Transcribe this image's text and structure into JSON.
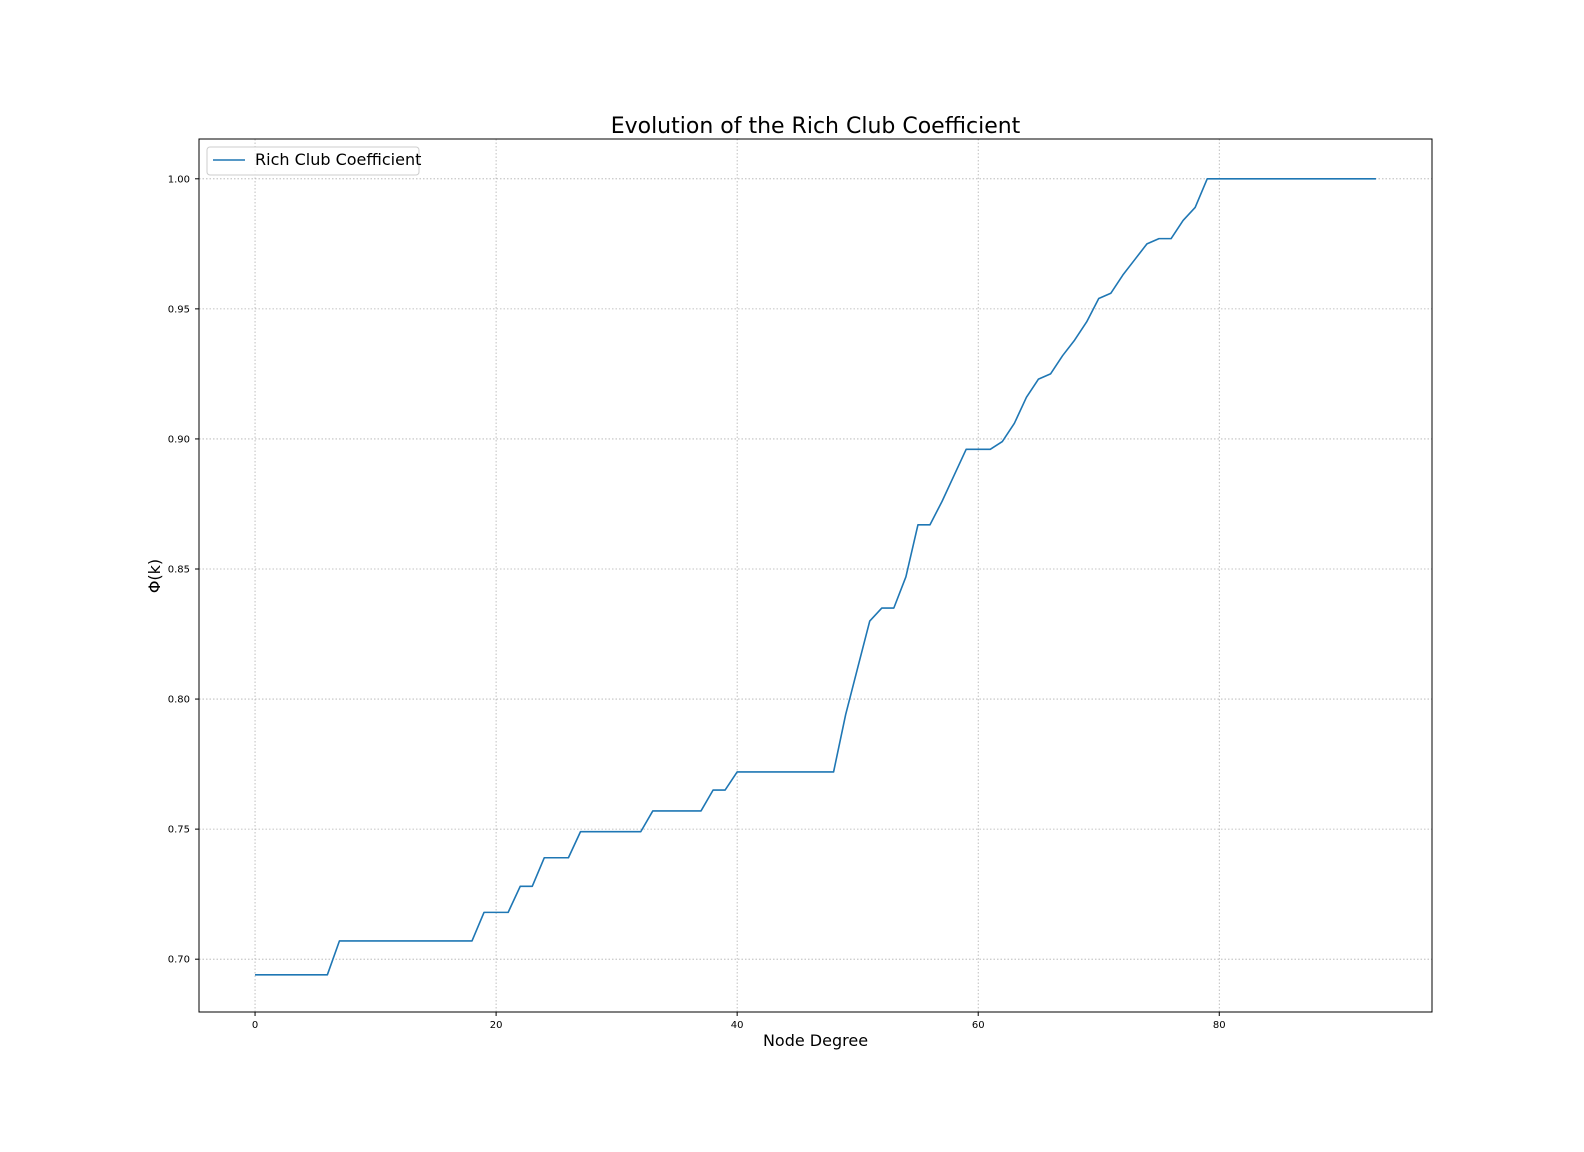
{
  "chart_data": {
    "type": "line",
    "title": "Evolution of the Rich Club Coefficient",
    "xlabel": "Node Degree",
    "ylabel": "Φ(k)",
    "xlim": [
      -4.65,
      97.65
    ],
    "ylim": [
      0.6797,
      1.0153
    ],
    "xticks": [
      0,
      20,
      40,
      60,
      80
    ],
    "yticks": [
      0.7,
      0.75,
      0.8,
      0.85,
      0.9,
      0.95,
      1.0
    ],
    "xtick_labels": [
      "0",
      "20",
      "40",
      "60",
      "80"
    ],
    "ytick_labels": [
      "0.70",
      "0.75",
      "0.80",
      "0.85",
      "0.90",
      "0.95",
      "1.00"
    ],
    "grid": true,
    "legend_position": "top-left",
    "series": [
      {
        "name": "Rich Club Coefficient",
        "color": "#1f77b4",
        "x": [
          0,
          1,
          2,
          3,
          4,
          5,
          6,
          7,
          8,
          9,
          10,
          11,
          12,
          13,
          14,
          15,
          16,
          17,
          18,
          19,
          20,
          21,
          22,
          23,
          24,
          25,
          26,
          27,
          28,
          29,
          30,
          31,
          32,
          33,
          34,
          35,
          36,
          37,
          38,
          39,
          40,
          41,
          42,
          43,
          44,
          45,
          46,
          47,
          48,
          49,
          50,
          51,
          52,
          53,
          54,
          55,
          56,
          57,
          58,
          59,
          60,
          61,
          62,
          63,
          64,
          65,
          66,
          67,
          68,
          69,
          70,
          71,
          72,
          73,
          74,
          75,
          76,
          77,
          78,
          79,
          80,
          81,
          82,
          83,
          84,
          85,
          86,
          87,
          88,
          89,
          90,
          91,
          92,
          93
        ],
        "y": [
          0.694,
          0.694,
          0.694,
          0.694,
          0.694,
          0.694,
          0.694,
          0.707,
          0.707,
          0.707,
          0.707,
          0.707,
          0.707,
          0.707,
          0.707,
          0.707,
          0.707,
          0.707,
          0.707,
          0.718,
          0.718,
          0.718,
          0.728,
          0.728,
          0.739,
          0.739,
          0.739,
          0.749,
          0.749,
          0.749,
          0.749,
          0.749,
          0.749,
          0.757,
          0.757,
          0.757,
          0.757,
          0.757,
          0.765,
          0.765,
          0.772,
          0.772,
          0.772,
          0.772,
          0.772,
          0.772,
          0.772,
          0.772,
          0.772,
          0.794,
          0.812,
          0.83,
          0.835,
          0.835,
          0.847,
          0.867,
          0.867,
          0.876,
          0.886,
          0.896,
          0.896,
          0.896,
          0.899,
          0.906,
          0.916,
          0.923,
          0.925,
          0.932,
          0.938,
          0.945,
          0.954,
          0.956,
          0.963,
          0.969,
          0.975,
          0.977,
          0.977,
          0.984,
          0.989,
          1.0,
          1.0,
          1.0,
          1.0,
          1.0,
          1.0,
          1.0,
          1.0,
          1.0,
          1.0,
          1.0,
          1.0,
          1.0,
          1.0,
          1.0
        ]
      }
    ]
  }
}
